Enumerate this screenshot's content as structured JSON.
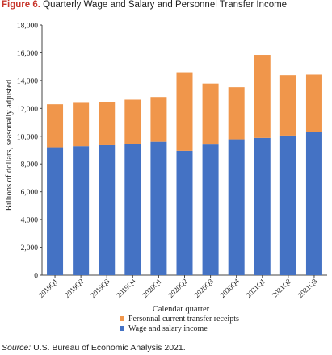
{
  "figure": {
    "number_label": "Figure 6.",
    "title_text": "Quarterly Wage and Salary and Personnel Transfer Income"
  },
  "source": {
    "label": "Source:",
    "text": "U.S. Bureau of Economic Analysis 2021."
  },
  "colors": {
    "wage": "#4472c4",
    "transfer": "#f0964b",
    "axis": "#444444",
    "text": "#222222"
  },
  "chart_data": {
    "type": "bar",
    "stacked": true,
    "categories": [
      "2019Q1",
      "2019Q2",
      "2019Q3",
      "2019Q4",
      "2020Q1",
      "2020Q2",
      "2020Q3",
      "2020Q4",
      "2021Q1",
      "2021Q2",
      "2021Q3"
    ],
    "series": [
      {
        "name": "Wage and salary income",
        "color": "#4472c4",
        "values": [
          9200,
          9280,
          9350,
          9450,
          9600,
          8950,
          9400,
          9780,
          9880,
          10050,
          10300
        ]
      },
      {
        "name": "Personnal current transfer receipts",
        "color": "#f0964b",
        "values": [
          3100,
          3120,
          3130,
          3180,
          3220,
          5650,
          4380,
          3740,
          5970,
          4340,
          4130
        ]
      }
    ],
    "xlabel": "Calendar quarter",
    "ylabel": "Billions of dollars, seasonally adjusted",
    "ylim": [
      0,
      18000
    ],
    "yticks": [
      0,
      2000,
      4000,
      6000,
      8000,
      10000,
      12000,
      14000,
      16000,
      18000
    ],
    "ytick_labels": [
      "0",
      "2,000",
      "4,000",
      "6,000",
      "8,000",
      "10,000",
      "12,000",
      "14,000",
      "16,000",
      "18,000"
    ],
    "grid": false,
    "legend_position": "bottom"
  }
}
